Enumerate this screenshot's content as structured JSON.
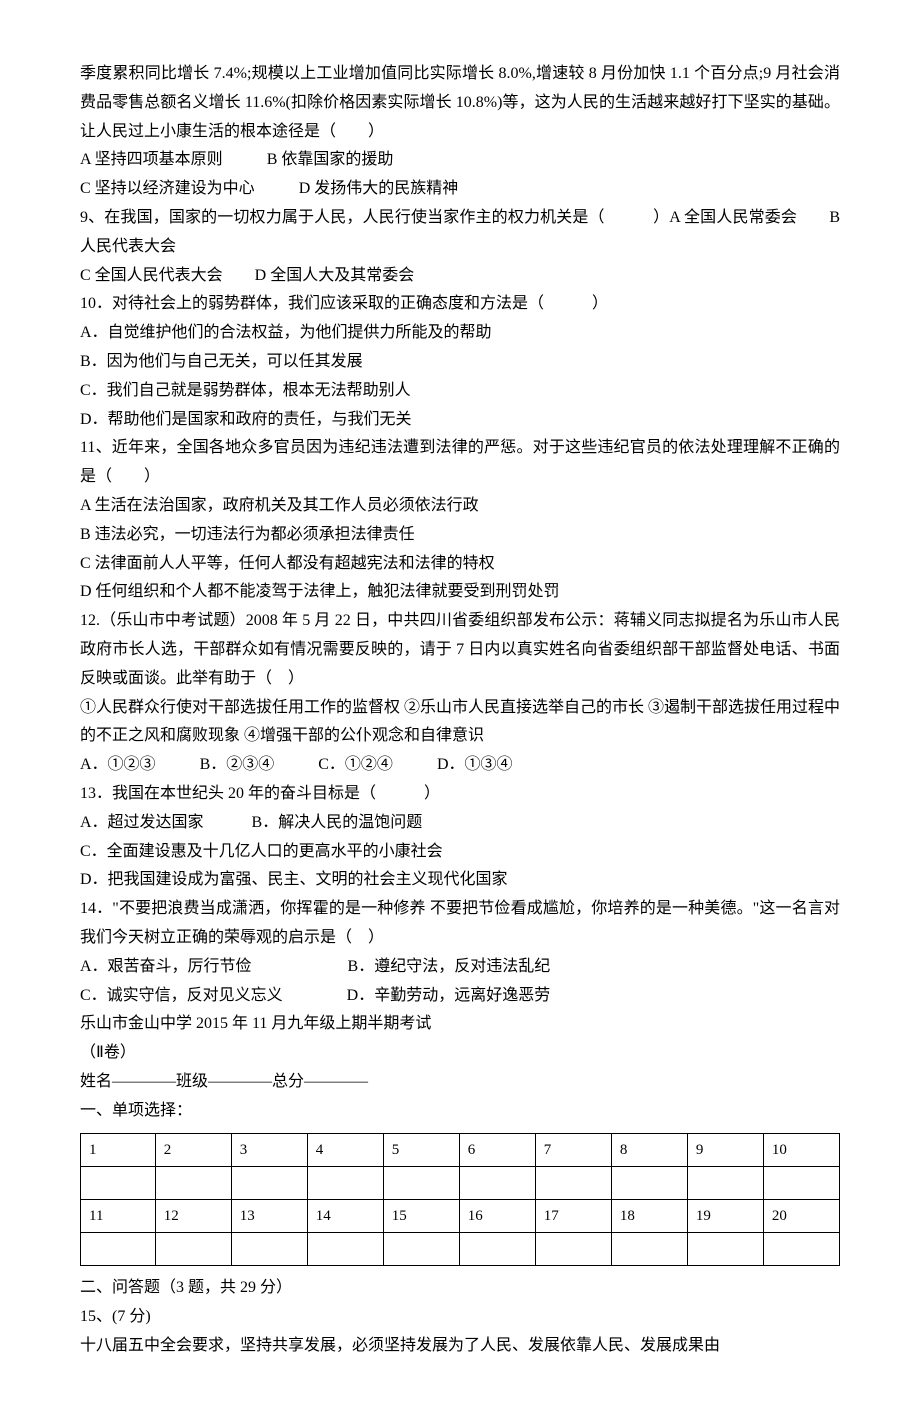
{
  "q8": {
    "cont": "季度累积同比增长 7.4%;规模以上工业增加值同比实际增长 8.0%,增速较 8 月份加快 1.1 个百分点;9 月社会消费品零售总额名义增长 11.6%(扣除价格因素实际增长 10.8%)等，这为人民的生活越来越好打下坚实的基础。让人民过上小康生活的根本途径是（　　）",
    "optA": "A 坚持四项基本原则",
    "optB": "B 依靠国家的援助",
    "optC": "C 坚持以经济建设为中心",
    "optD": "D 发扬伟大的民族精神"
  },
  "q9": {
    "stem": "9、在我国，国家的一切权力属于人民，人民行使当家作主的权力机关是（　　　）A 全国人民常委会　　B 人民代表大会",
    "line2": "C 全国人民代表大会　　D 全国人大及其常委会"
  },
  "q10": {
    "stem": "10．对待社会上的弱势群体，我们应该采取的正确态度和方法是（　　　）",
    "optA": "A．自觉维护他们的合法权益，为他们提供力所能及的帮助",
    "optB": "B．因为他们与自己无关，可以任其发展",
    "optC": "C．我们自己就是弱势群体，根本无法帮助别人",
    "optD": "D．帮助他们是国家和政府的责任，与我们无关"
  },
  "q11": {
    "stem": "11、近年来，全国各地众多官员因为违纪违法遭到法律的严惩。对于这些违纪官员的依法处理理解不正确的是（　　）",
    "optA": "A 生活在法治国家，政府机关及其工作人员必须依法行政",
    "optB": "B 违法必究，一切违法行为都必须承担法律责任",
    "optC": "C 法律面前人人平等，任何人都没有超越宪法和法律的特权",
    "optD": "D 任何组织和个人都不能凌驾于法律上，触犯法律就要受到刑罚处罚"
  },
  "q12": {
    "stem": "12.（乐山市中考试题）2008 年 5 月 22 日，中共四川省委组织部发布公示：蒋辅义同志拟提名为乐山市人民政府市长人选，干部群众如有情况需要反映的，请于 7 日内以真实姓名向省委组织部干部监督处电话、书面反映或面谈。此举有助于（　）",
    "circles": "①人民群众行使对干部选拔任用工作的监督权 ②乐山市人民直接选举自己的市长 ③遏制干部选拔任用过程中的不正之风和腐败现象 ④增强干部的公仆观念和自律意识",
    "optA": "A．①②③",
    "optB": "B．②③④",
    "optC": "C．①②④",
    "optD": "D．①③④"
  },
  "q13": {
    "stem": "13．我国在本世纪头 20 年的奋斗目标是（　　　）",
    "optAB": "A．超过发达国家　　　B．解决人民的温饱问题",
    "optC": "C．全面建设惠及十几亿人口的更高水平的小康社会",
    "optD": "D．把我国建设成为富强、民主、文明的社会主义现代化国家"
  },
  "q14": {
    "stem": "14．\"不要把浪费当成潇洒，你挥霍的是一种修养 不要把节俭看成尴尬，你培养的是一种美德。\"这一名言对我们今天树立正确的荣辱观的启示是（　）",
    "optAB": "A．艰苦奋斗，厉行节俭　　　　　　B．遵纪守法，反对违法乱纪",
    "optCD": "C．诚实守信，反对见义忘义　　　　D．辛勤劳动，远离好逸恶劳"
  },
  "paper2": {
    "title": "乐山市金山中学 2015 年 11 月九年级上期半期考试",
    "juan": "（Ⅱ卷）",
    "nameline": "姓名————班级————总分————",
    "section1": "一、单项选择：",
    "headers1": [
      "1",
      "2",
      "3",
      "4",
      "5",
      "6",
      "7",
      "8",
      "9",
      "10"
    ],
    "headers2": [
      "11",
      "12",
      "13",
      "14",
      "15",
      "16",
      "17",
      "18",
      "19",
      "20"
    ],
    "section2": "二、问答题（3 题，共 29 分）",
    "q15label": "15、(7 分)",
    "q15text": "十八届五中全会要求，坚持共享发展，必须坚持发展为了人民、发展依靠人民、发展成果由"
  }
}
